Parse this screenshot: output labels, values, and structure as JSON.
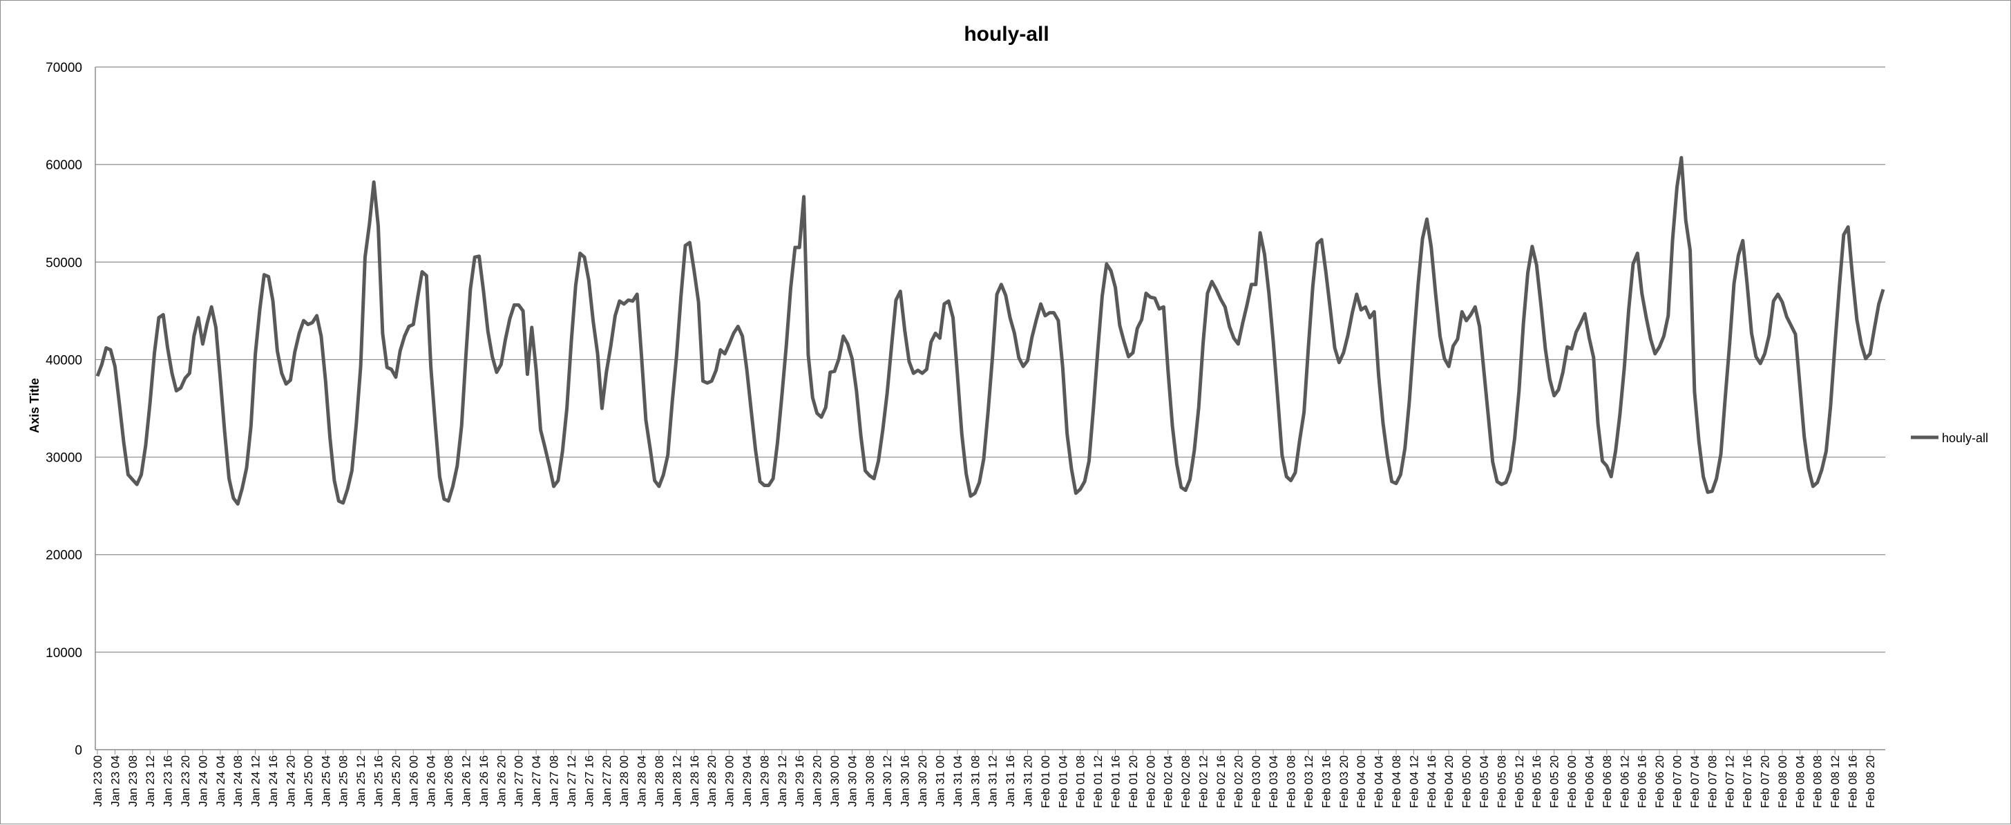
{
  "chart_data": {
    "type": "line",
    "title": "houly-all",
    "xlabel": "",
    "ylabel": "Axis Title",
    "ylim": [
      0,
      70000
    ],
    "yticks": [
      0,
      10000,
      20000,
      30000,
      40000,
      50000,
      60000,
      70000
    ],
    "grid": "horizontal",
    "legend": "right",
    "colors": {
      "line": "#595959",
      "grid": "#8c8c8c",
      "axis": "#8c8c8c"
    },
    "x_tick_labels": [
      "Jan 23 00",
      "Jan 23 04",
      "Jan 23 08",
      "Jan 23 12",
      "Jan 23 16",
      "Jan 23 20",
      "Jan 24 00",
      "Jan 24 04",
      "Jan 24 08",
      "Jan 24 12",
      "Jan 24 16",
      "Jan 24 20",
      "Jan 25 00",
      "Jan 25 04",
      "Jan 25 08",
      "Jan 25 12",
      "Jan 25 16",
      "Jan 25 20",
      "Jan 26 00",
      "Jan 26 04",
      "Jan 26 08",
      "Jan 26 12",
      "Jan 26 16",
      "Jan 26 20",
      "Jan 27 00",
      "Jan 27 04",
      "Jan 27 08",
      "Jan 27 12",
      "Jan 27 16",
      "Jan 27 20",
      "Jan 28 00",
      "Jan 28 04",
      "Jan 28 08",
      "Jan 28 12",
      "Jan 28 16",
      "Jan 28 20",
      "Jan 29 00",
      "Jan 29 04",
      "Jan 29 08",
      "Jan 29 12",
      "Jan 29 16",
      "Jan 29 20",
      "Jan 30 00",
      "Jan 30 04",
      "Jan 30 08",
      "Jan 30 12",
      "Jan 30 16",
      "Jan 30 20",
      "Jan 31 00",
      "Jan 31 04",
      "Jan 31 08",
      "Jan 31 12",
      "Jan 31 16",
      "Jan 31 20",
      "Feb 01 00",
      "Feb 01 04",
      "Feb 01 08",
      "Feb 01 12",
      "Feb 01 16",
      "Feb 01 20",
      "Feb 02 00",
      "Feb 02 04",
      "Feb 02 08",
      "Feb 02 12",
      "Feb 02 16",
      "Feb 02 20",
      "Feb 03 00",
      "Feb 03 04",
      "Feb 03 08",
      "Feb 03 12",
      "Feb 03 16",
      "Feb 03 20",
      "Feb 04 00",
      "Feb 04 04",
      "Feb 04 08",
      "Feb 04 12",
      "Feb 04 16",
      "Feb 04 20",
      "Feb 05 00",
      "Feb 05 04",
      "Feb 05 08",
      "Feb 05 12",
      "Feb 05 16",
      "Feb 05 20",
      "Feb 06 00",
      "Feb 06 04",
      "Feb 06 08",
      "Feb 06 12",
      "Feb 06 16",
      "Feb 06 20",
      "Feb 07 00",
      "Feb 07 04",
      "Feb 07 08",
      "Feb 07 12",
      "Feb 07 16",
      "Feb 07 20",
      "Feb 08 00",
      "Feb 08 04",
      "Feb 08 08",
      "Feb 08 12",
      "Feb 08 16",
      "Feb 08 20"
    ],
    "series": [
      {
        "name": "houly-all",
        "values": [
          38300,
          39500,
          41200,
          41000,
          39300,
          35500,
          31500,
          28200,
          27700,
          27200,
          28200,
          31200,
          35600,
          40700,
          44300,
          44600,
          41200,
          38600,
          36800,
          37100,
          38100,
          38600,
          42400,
          44300,
          41600,
          43700,
          45400,
          43300,
          38100,
          32600,
          27800,
          25800,
          25200,
          26800,
          28900,
          33200,
          40600,
          45100,
          48700,
          48500,
          46000,
          40900,
          38600,
          37500,
          37900,
          40800,
          42700,
          44000,
          43600,
          43800,
          44500,
          42400,
          37800,
          32000,
          27600,
          25500,
          25300,
          26700,
          28600,
          33400,
          39300,
          50500,
          53900,
          58200,
          53700,
          42700,
          39200,
          39000,
          38200,
          40900,
          42400,
          43400,
          43600,
          46400,
          49000,
          48600,
          39200,
          33400,
          28000,
          25700,
          25500,
          27000,
          29100,
          33200,
          40500,
          47200,
          50500,
          50600,
          47000,
          42900,
          40300,
          38700,
          39500,
          42100,
          44200,
          45600,
          45600,
          45000,
          38500,
          43300,
          38900,
          32800,
          31000,
          29100,
          27000,
          27600,
          30600,
          35000,
          41800,
          47600,
          50900,
          50500,
          48100,
          43900,
          40600,
          35000,
          38700,
          41400,
          44500,
          46000,
          45700,
          46100,
          46000,
          46700,
          40400,
          33800,
          30800,
          27600,
          27000,
          28200,
          30200,
          35600,
          40400,
          46500,
          51700,
          52000,
          49100,
          45900,
          37800,
          37600,
          37800,
          38900,
          41000,
          40600,
          41600,
          42700,
          43400,
          42400,
          39000,
          34800,
          30700,
          27500,
          27100,
          27100,
          27800,
          31500,
          36300,
          41400,
          47300,
          51500,
          51500,
          56700,
          40500,
          36100,
          34500,
          34100,
          35100,
          38700,
          38800,
          40100,
          42400,
          41600,
          40100,
          36800,
          32200,
          28600,
          28100,
          27800,
          29600,
          32800,
          36600,
          41400,
          46100,
          47000,
          43000,
          39800,
          38600,
          38900,
          38600,
          39000,
          41800,
          42700,
          42200,
          45700,
          46000,
          44300,
          38500,
          32400,
          28300,
          26000,
          26300,
          27400,
          29800,
          34700,
          40300,
          46700,
          47700,
          46600,
          44300,
          42700,
          40200,
          39300,
          39900,
          42300,
          44100,
          45700,
          44500,
          44800,
          44800,
          44000,
          39200,
          32400,
          28800,
          26300,
          26700,
          27500,
          29600,
          35000,
          41000,
          46500,
          49800,
          49100,
          47400,
          43500,
          41800,
          40300,
          40700,
          43200,
          44100,
          46800,
          46400,
          46300,
          45200,
          45400,
          38900,
          33200,
          29300,
          26900,
          26600,
          27700,
          30700,
          35100,
          41700,
          46800,
          48000,
          47200,
          46200,
          45400,
          43400,
          42200,
          41600,
          43700,
          45600,
          47700,
          47700,
          53000,
          50800,
          46800,
          41800,
          36100,
          30200,
          28000,
          27600,
          28400,
          31700,
          34600,
          41300,
          47500,
          51900,
          52300,
          48900,
          45100,
          41200,
          39700,
          40700,
          42500,
          44800,
          46700,
          45100,
          45400,
          44300,
          44900,
          38400,
          33500,
          30100,
          27500,
          27300,
          28200,
          30900,
          35700,
          41900,
          47700,
          52400,
          54400,
          51500,
          46700,
          42400,
          40100,
          39300,
          41400,
          42100,
          44900,
          44000,
          44600,
          45400,
          43400,
          38800,
          34200,
          29500,
          27500,
          27200,
          27400,
          28600,
          31900,
          36800,
          43700,
          48900,
          51600,
          49700,
          45600,
          41100,
          38000,
          36300,
          36900,
          38700,
          41300,
          41100,
          42800,
          43700,
          44700,
          42200,
          40200,
          33400,
          29600,
          29100,
          28000,
          30600,
          34400,
          39200,
          45100,
          49800,
          50900,
          46800,
          44300,
          42100,
          40600,
          41300,
          42400,
          44500,
          52300,
          57700,
          60700,
          54300,
          51200,
          36700,
          31600,
          28000,
          26400,
          26500,
          27800,
          30300,
          36100,
          41600,
          47800,
          50700,
          52200,
          47700,
          42700,
          40300,
          39600,
          40600,
          42500,
          46000,
          46700,
          45900,
          44400,
          43500,
          42600,
          37400,
          32100,
          28800,
          27000,
          27400,
          28700,
          30600,
          35200,
          41500,
          47400,
          52800,
          53600,
          48500,
          44100,
          41600,
          40100,
          40600,
          43200,
          45700,
          47200
        ]
      }
    ]
  }
}
